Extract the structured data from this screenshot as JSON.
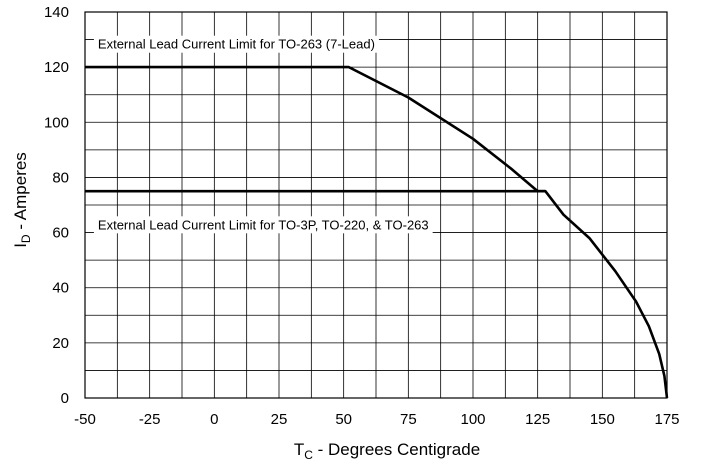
{
  "chart_data": {
    "type": "line",
    "xlabel": {
      "main": "T",
      "sub": "C",
      "rest": " - Degrees Centigrade"
    },
    "ylabel": {
      "main": "I",
      "sub": "D",
      "rest": " - Amperes"
    },
    "xlim": [
      -50,
      175
    ],
    "ylim": [
      0,
      140
    ],
    "x_ticks": [
      "-50",
      "-25",
      "0",
      "25",
      "50",
      "75",
      "100",
      "125",
      "150",
      "175"
    ],
    "y_ticks": [
      "0",
      "20",
      "40",
      "60",
      "80",
      "100",
      "120",
      "140"
    ],
    "grid": true,
    "series": [
      {
        "x": [
          -50,
          52,
          75,
          100,
          115,
          125,
          128,
          135,
          145,
          155,
          163,
          168,
          172,
          174,
          175
        ],
        "y": [
          120,
          120,
          109,
          94,
          83,
          75,
          75,
          66.5,
          58,
          46,
          35,
          26,
          16,
          8,
          0
        ]
      },
      {
        "x": [
          -50,
          128
        ],
        "y": [
          75,
          75
        ]
      }
    ],
    "annotations": [
      {
        "text": "External Lead Current Limit for TO-263 (7-Lead)",
        "x": -45,
        "y": 128.5
      },
      {
        "text": "External Lead Current Limit for TO-3P, TO-220, & TO-263",
        "x": -45,
        "y": 63
      }
    ]
  }
}
